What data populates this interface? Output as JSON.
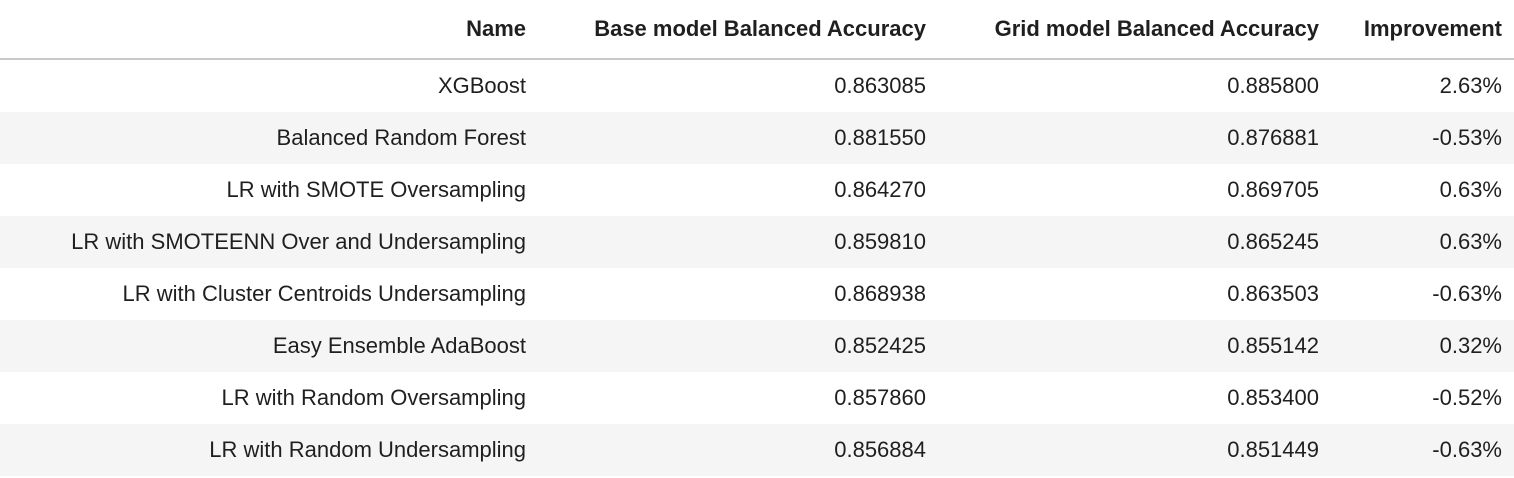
{
  "table": {
    "headers": {
      "name": "Name",
      "base": "Base model Balanced Accuracy",
      "grid": "Grid model Balanced Accuracy",
      "improvement": "Improvement"
    },
    "rows": [
      {
        "name": "XGBoost",
        "base": "0.863085",
        "grid": "0.885800",
        "improvement": "2.63%"
      },
      {
        "name": "Balanced Random Forest",
        "base": "0.881550",
        "grid": "0.876881",
        "improvement": "-0.53%"
      },
      {
        "name": "LR with SMOTE Oversampling",
        "base": "0.864270",
        "grid": "0.869705",
        "improvement": "0.63%"
      },
      {
        "name": "LR with SMOTEENN Over and Undersampling",
        "base": "0.859810",
        "grid": "0.865245",
        "improvement": "0.63%"
      },
      {
        "name": "LR with Cluster Centroids Undersampling",
        "base": "0.868938",
        "grid": "0.863503",
        "improvement": "-0.63%"
      },
      {
        "name": "Easy Ensemble AdaBoost",
        "base": "0.852425",
        "grid": "0.855142",
        "improvement": "0.32%"
      },
      {
        "name": "LR with Random Oversampling",
        "base": "0.857860",
        "grid": "0.853400",
        "improvement": "-0.52%"
      },
      {
        "name": "LR with Random Undersampling",
        "base": "0.856884",
        "grid": "0.851449",
        "improvement": "-0.63%"
      }
    ]
  }
}
